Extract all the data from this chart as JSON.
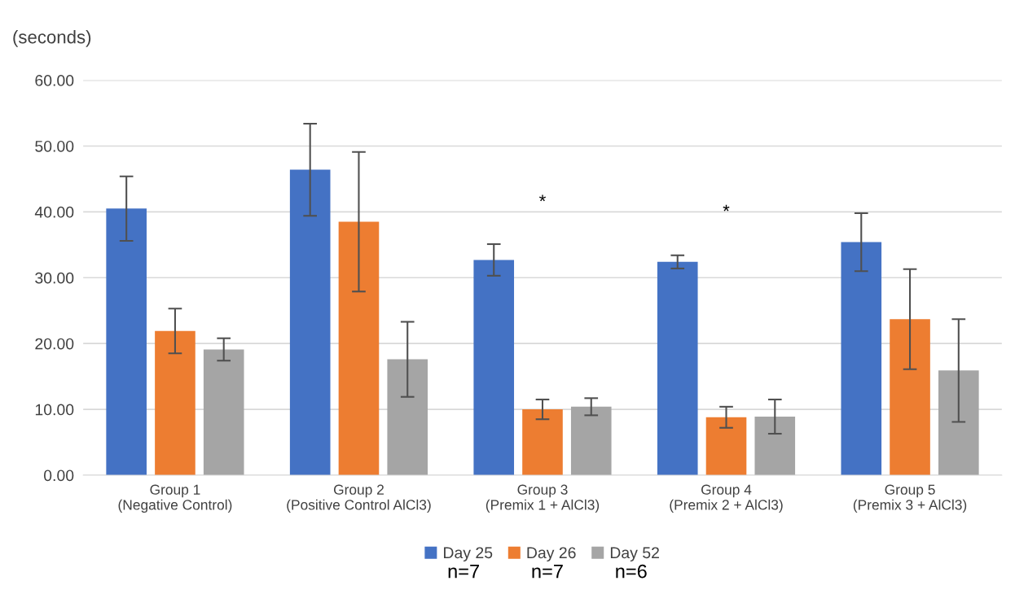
{
  "chart_data": {
    "type": "bar",
    "ylabel": "(seconds)",
    "categories": [
      "Group 1\n(Negative Control)",
      "Group 2\n(Positive Control AlCl3)",
      "Group 3\n(Premix 1 + AlCl3)",
      "Group 4\n(Premix 2 + AlCl3)",
      "Group 5\n(Premix 3 + AlCl3)"
    ],
    "series": [
      {
        "name": "Day 25",
        "color": "#4472c4",
        "values": [
          40.5,
          46.4,
          32.7,
          32.4,
          35.4
        ],
        "errors": [
          4.9,
          7.0,
          2.4,
          1.0,
          4.4
        ]
      },
      {
        "name": "Day 26",
        "color": "#ed7d31",
        "values": [
          21.9,
          38.5,
          10.0,
          8.8,
          23.7
        ],
        "errors": [
          3.4,
          10.6,
          1.5,
          1.6,
          7.6
        ]
      },
      {
        "name": "Day 52",
        "color": "#a5a5a5",
        "values": [
          19.1,
          17.6,
          10.4,
          8.9,
          15.9
        ],
        "errors": [
          1.7,
          5.7,
          1.3,
          2.6,
          7.8
        ]
      }
    ],
    "ylim": [
      0,
      60
    ],
    "yticks": [
      {
        "value": 0,
        "label": "0.00"
      },
      {
        "value": 10,
        "label": "10.00"
      },
      {
        "value": 20,
        "label": "20.00"
      },
      {
        "value": 30,
        "label": "30.00"
      },
      {
        "value": 40,
        "label": "40.00"
      },
      {
        "value": 50,
        "label": "50.00"
      },
      {
        "value": 60,
        "label": "60.00"
      }
    ],
    "grid": "y",
    "legend": "bottom",
    "annotations": [
      "*",
      "*",
      "n=7",
      "n=7",
      "n=6"
    ]
  }
}
